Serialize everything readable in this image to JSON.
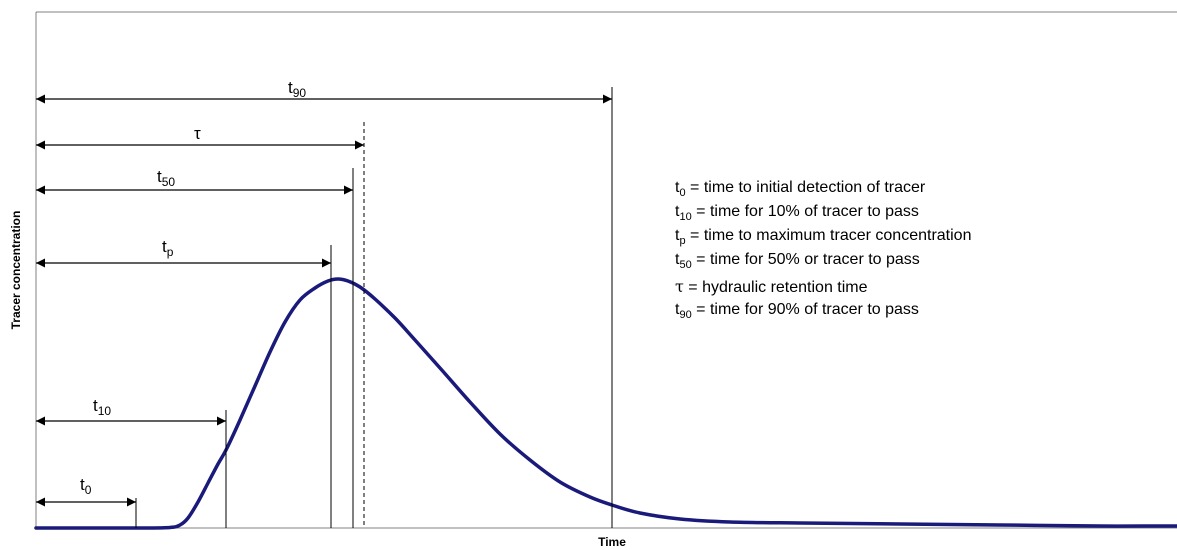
{
  "axes": {
    "x_label": "Time",
    "y_label": "Tracer concentration"
  },
  "markers": [
    {
      "id": "t90",
      "base": "t",
      "sub": "90",
      "line_style": "solid"
    },
    {
      "id": "tau",
      "base": "τ",
      "sub": "",
      "line_style": "dashed"
    },
    {
      "id": "t50",
      "base": "t",
      "sub": "50",
      "line_style": "solid"
    },
    {
      "id": "tp",
      "base": "t",
      "sub": "p",
      "line_style": "solid"
    },
    {
      "id": "t10",
      "base": "t",
      "sub": "10",
      "line_style": "solid"
    },
    {
      "id": "t0",
      "base": "t",
      "sub": "0",
      "line_style": "solid"
    }
  ],
  "legend": [
    {
      "base": "t",
      "sub": "0",
      "text": " = time to initial detection of tracer"
    },
    {
      "base": "t",
      "sub": "10",
      "text": " = time for 10% of tracer to pass"
    },
    {
      "base": "t",
      "sub": "p",
      "text": " = time to maximum tracer concentration"
    },
    {
      "base": "t",
      "sub": "50",
      "text": " = time for 50% or tracer to pass"
    },
    {
      "base": "τ",
      "sub": "",
      "text": " = hydraulic retention time"
    },
    {
      "base": "t",
      "sub": "90",
      "text": " = time for 90% of tracer to pass"
    }
  ],
  "colors": {
    "curve": "#1a1a7a",
    "lines": "#000000",
    "frame": "#808080"
  }
}
